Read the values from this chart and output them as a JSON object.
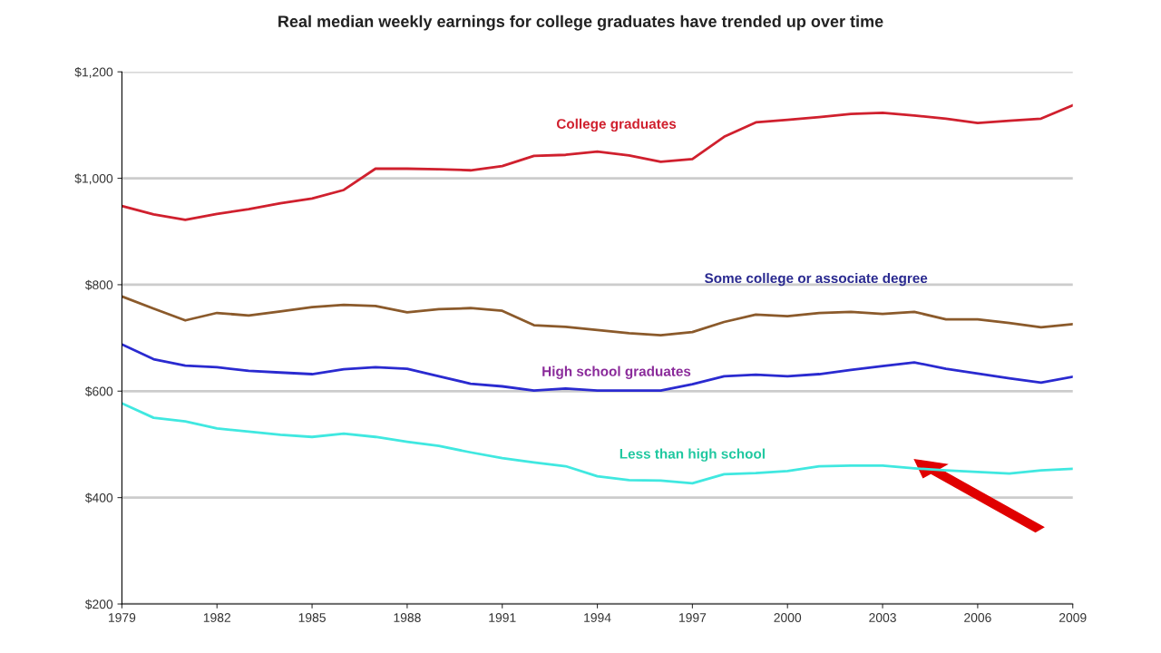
{
  "chart_data": {
    "type": "line",
    "title": "Real median weekly earnings for college graduates have trended up over time",
    "x": [
      1979,
      1980,
      1981,
      1982,
      1983,
      1984,
      1985,
      1986,
      1987,
      1988,
      1989,
      1990,
      1991,
      1992,
      1993,
      1994,
      1995,
      1996,
      1997,
      1998,
      1999,
      2000,
      2001,
      2002,
      2003,
      2004,
      2005,
      2006,
      2007,
      2008,
      2009
    ],
    "series": [
      {
        "name": "College graduates",
        "color": "#d0202e",
        "values": [
          948,
          932,
          922,
          933,
          942,
          953,
          962,
          978,
          1018,
          1018,
          1017,
          1015,
          1023,
          1042,
          1044,
          1050,
          1043,
          1031,
          1036,
          1078,
          1105,
          1110,
          1115,
          1121,
          1123,
          1118,
          1112,
          1104,
          1108,
          1112,
          1137
        ]
      },
      {
        "name": "Some college or associate degree",
        "color": "#8b5a2b",
        "values": [
          778,
          755,
          733,
          747,
          742,
          750,
          758,
          762,
          760,
          748,
          754,
          756,
          751,
          724,
          721,
          715,
          709,
          705,
          711,
          730,
          744,
          741,
          747,
          749,
          745,
          749,
          735,
          735,
          728,
          720,
          726
        ]
      },
      {
        "name": "High school graduates",
        "color": "#2a2ad0",
        "values": [
          688,
          660,
          648,
          645,
          638,
          635,
          632,
          641,
          645,
          642,
          628,
          614,
          609,
          601,
          605,
          601,
          601,
          601,
          613,
          628,
          631,
          628,
          632,
          640,
          647,
          654,
          642,
          633,
          624,
          616,
          627
        ]
      },
      {
        "name": "Less than high school",
        "color": "#40e8e0",
        "values": [
          577,
          550,
          543,
          530,
          524,
          518,
          514,
          520,
          514,
          505,
          497,
          485,
          474,
          466,
          459,
          440,
          433,
          432,
          427,
          444,
          446,
          450,
          459,
          460,
          460,
          455,
          451,
          448,
          445,
          451,
          454
        ]
      }
    ],
    "xlim": [
      1979,
      2009
    ],
    "xticks": [
      1979,
      1982,
      1985,
      1988,
      1991,
      1994,
      1997,
      2000,
      2003,
      2006,
      2009
    ],
    "ylim": [
      200,
      1200
    ],
    "yticks": [
      {
        "value": 200,
        "label": "$200"
      },
      {
        "value": 400,
        "label": "$400"
      },
      {
        "value": 600,
        "label": "$600"
      },
      {
        "value": 800,
        "label": "$800"
      },
      {
        "value": 1000,
        "label": "$1,000"
      },
      {
        "value": 1200,
        "label": "$1,200"
      }
    ],
    "grid": "y",
    "marker": "none",
    "line_style": "solid",
    "legend": false
  }
}
